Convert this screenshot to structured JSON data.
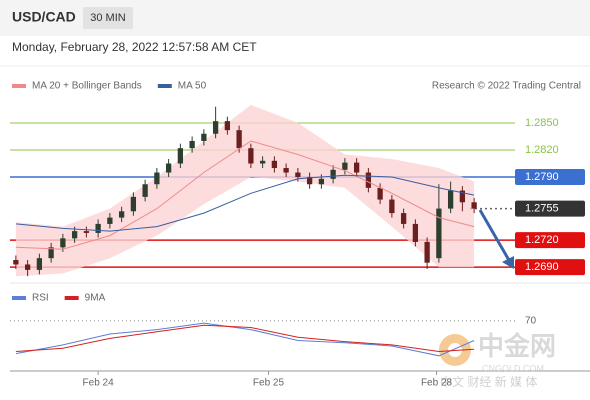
{
  "header": {
    "title": "USD/CAD",
    "interval": "30 MIN",
    "timestamp": "Monday, February 28, 2022 12:57:58 AM CET"
  },
  "chart_data": [
    {
      "type": "candlestick",
      "source": "Research © 2022 Trading Central",
      "xlim": [
        -0.5,
        39.5
      ],
      "ylim": [
        1.2678,
        1.2881
      ],
      "up_color": "#2f3f2f",
      "down_color": "#6b1f1f",
      "open": [
        1.2698,
        1.2693,
        1.2687,
        1.27,
        1.2712,
        1.2722,
        1.273,
        1.2728,
        1.2738,
        1.2745,
        1.2752,
        1.2768,
        1.2782,
        1.2795,
        1.2805,
        1.2822,
        1.283,
        1.2838,
        1.2852,
        1.2842,
        1.2822,
        1.2805,
        1.2808,
        1.28,
        1.2795,
        1.279,
        1.2782,
        1.2788,
        1.2798,
        1.2806,
        1.2795,
        1.2778,
        1.2765,
        1.275,
        1.2738,
        1.2718,
        1.27,
        1.2755,
        1.2775,
        1.2762
      ],
      "high": [
        1.2703,
        1.2698,
        1.2705,
        1.2717,
        1.2727,
        1.2735,
        1.2735,
        1.2743,
        1.275,
        1.2757,
        1.2773,
        1.2787,
        1.28,
        1.281,
        1.2827,
        1.2835,
        1.2843,
        1.2868,
        1.2857,
        1.2847,
        1.2827,
        1.2813,
        1.2813,
        1.2805,
        1.28,
        1.2795,
        1.2793,
        1.2803,
        1.2811,
        1.2811,
        1.28,
        1.2783,
        1.277,
        1.2755,
        1.2743,
        1.2723,
        1.2782,
        1.2785,
        1.278,
        1.2767
      ],
      "low": [
        1.2688,
        1.268,
        1.2682,
        1.2695,
        1.2707,
        1.2717,
        1.2723,
        1.2723,
        1.2733,
        1.274,
        1.2747,
        1.2763,
        1.2777,
        1.279,
        1.28,
        1.2817,
        1.2825,
        1.2833,
        1.2837,
        1.2817,
        1.28,
        1.28,
        1.2795,
        1.279,
        1.2785,
        1.2777,
        1.2777,
        1.2783,
        1.2793,
        1.279,
        1.2773,
        1.276,
        1.2745,
        1.2733,
        1.2713,
        1.2688,
        1.2695,
        1.275,
        1.2752,
        1.275
      ],
      "close": [
        1.2693,
        1.2687,
        1.27,
        1.2712,
        1.2722,
        1.273,
        1.2728,
        1.2738,
        1.2745,
        1.2752,
        1.2768,
        1.2782,
        1.2795,
        1.2805,
        1.2822,
        1.283,
        1.2838,
        1.2852,
        1.2842,
        1.2822,
        1.2805,
        1.2808,
        1.28,
        1.2795,
        1.279,
        1.2782,
        1.2788,
        1.2798,
        1.2806,
        1.2795,
        1.2778,
        1.2765,
        1.275,
        1.2738,
        1.2718,
        1.2695,
        1.2755,
        1.2775,
        1.2762,
        1.2755
      ],
      "overlays": [
        {
          "name": "MA 20 + Bollinger Bands",
          "color": "#f08a8a",
          "band_color": "#fbd3d3",
          "x": [
            0,
            4,
            8,
            12,
            16,
            20,
            24,
            28,
            32,
            36,
            39
          ],
          "values": [
            1.2712,
            1.271,
            1.2725,
            1.2755,
            1.2795,
            1.283,
            1.2815,
            1.2797,
            1.2772,
            1.2745,
            1.2735
          ],
          "upper": [
            1.274,
            1.2735,
            1.2755,
            1.279,
            1.283,
            1.287,
            1.285,
            1.2815,
            1.281,
            1.28,
            1.2785
          ],
          "lower": [
            1.268,
            1.2683,
            1.27,
            1.2725,
            1.276,
            1.279,
            1.2785,
            1.2778,
            1.2735,
            1.269,
            1.269
          ]
        },
        {
          "name": "MA 50",
          "color": "#3a5f9f",
          "x": [
            0,
            4,
            8,
            12,
            16,
            20,
            24,
            28,
            32,
            36,
            39
          ],
          "values": [
            1.2738,
            1.2733,
            1.273,
            1.2735,
            1.275,
            1.2772,
            1.2788,
            1.2792,
            1.279,
            1.2778,
            1.277
          ]
        }
      ],
      "levels": [
        {
          "value": 1.285,
          "label": "1.2850",
          "color": "#8bc34a",
          "style": "text"
        },
        {
          "value": 1.282,
          "label": "1.2820",
          "color": "#8bc34a",
          "style": "text"
        },
        {
          "value": 1.279,
          "label": "1.2790",
          "color": "#3b6fd0",
          "style": "tag"
        },
        {
          "value": 1.2755,
          "label": "1.2755",
          "color": "#333333",
          "style": "tag",
          "dashed": true
        },
        {
          "value": 1.272,
          "label": "1.2720",
          "color": "#e01010",
          "style": "tag"
        },
        {
          "value": 1.269,
          "label": "1.2690",
          "color": "#e01010",
          "style": "tag"
        }
      ]
    },
    {
      "type": "line",
      "xlim": [
        -0.5,
        39.5
      ],
      "ylim": [
        25,
        80
      ],
      "yticks": [
        70
      ],
      "xticks": [
        {
          "value": 7,
          "label": "Feb 24"
        },
        {
          "value": 21.5,
          "label": "Feb 25"
        },
        {
          "value": 35.8,
          "label": "Feb 28"
        }
      ],
      "x": [
        0,
        4,
        8,
        12,
        16,
        20,
        24,
        28,
        32,
        36,
        39
      ],
      "series": [
        {
          "name": "RSI",
          "color": "#5b7fd6",
          "values": [
            40,
            48,
            58,
            62,
            68,
            62,
            52,
            50,
            47,
            38,
            52
          ]
        },
        {
          "name": "9MA",
          "color": "#d62020",
          "values": [
            42,
            45,
            54,
            60,
            66,
            64,
            55,
            51,
            48,
            42,
            44
          ]
        }
      ]
    }
  ],
  "watermark": {
    "brand": "中金网",
    "domain": "CNGOLD.COM",
    "tagline": "中文 财经 新 媒 体"
  }
}
